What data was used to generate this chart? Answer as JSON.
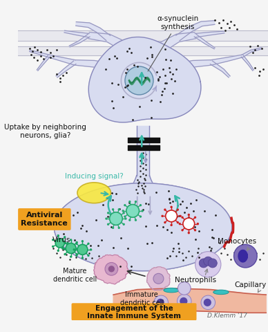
{
  "bg_color": "#f5f5f5",
  "neuron_body_color": "#d8dcf0",
  "neuron_outline": "#8888bb",
  "arm_color": "#dde0f2",
  "arm_edge": "#9898c0",
  "nerve_color": "#e8e8e8",
  "nerve_edge": "#cccccc",
  "dot_color": "#222222",
  "teal_color": "#38b8a8",
  "purple_arrow_color": "#9898b8",
  "red_color": "#cc2020",
  "antiviral_bg": "#f0a020",
  "engagement_bg": "#f0a020",
  "label_color": "#111111",
  "nucleus_fill": "#a0d0e0",
  "nucleus_edge": "#5080a0",
  "virus_teal_fill": "#50c8a0",
  "virus_teal_edge": "#20a878",
  "virus_red_fill": "#ffffff",
  "virus_red_edge": "#cc2020",
  "yellow_signal": "#f0e020",
  "yellow_signal_edge": "#c0a810",
  "dendritic_fill": "#e0b8d0",
  "dendritic_edge": "#c080a0",
  "neutrophil_fill": "#d8cce8",
  "neutrophil_edge": "#a090c0",
  "monocyte_fill": "#8878b8",
  "monocyte_edge": "#5848a0",
  "capillary_fill": "#f0b8a0",
  "capillary_edge": "#c86050",
  "cell_fill": "#c8b8e0",
  "cell_edge": "#8878b8",
  "title": "α-synuclein\nsynthesis",
  "label_uptake": "Uptake by neighboring\nneurons, glia?",
  "label_inducing": "Inducing signal?",
  "label_antiviral": "Antiviral\nResistance",
  "label_virus": "Virus",
  "label_mature": "Mature\ndendritic cell",
  "label_immature": "Immature\ndendritic cell",
  "label_neutrophils": "Neutrophils",
  "label_monocytes": "Monocytes",
  "label_capillary": "Capillary",
  "label_engagement": "Engagement of the\nInnate Immune System",
  "label_credit": "D.Klemm '17"
}
